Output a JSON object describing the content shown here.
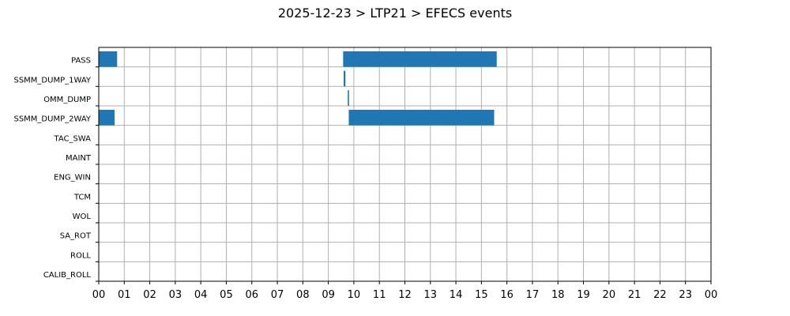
{
  "chart_data": {
    "type": "bar",
    "orientation": "horizontal-timeline",
    "title": "2025-12-23 > LTP21 > EFECS events",
    "xlabel": "",
    "ylabel": "",
    "xlim": [
      0,
      24
    ],
    "x_tick_labels": [
      "00",
      "01",
      "02",
      "03",
      "04",
      "05",
      "06",
      "07",
      "08",
      "09",
      "10",
      "11",
      "12",
      "13",
      "14",
      "15",
      "16",
      "17",
      "18",
      "19",
      "20",
      "21",
      "22",
      "23",
      "00"
    ],
    "categories": [
      "PASS",
      "SSMM_DUMP_1WAY",
      "OMM_DUMP",
      "SSMM_DUMP_2WAY",
      "TAC_SWA",
      "MAINT",
      "ENG_WIN",
      "TCM",
      "WOL",
      "SA_ROT",
      "ROLL",
      "CALIB_ROLL"
    ],
    "grid": true,
    "bar_color": "#1f77b4",
    "events": [
      {
        "category": "PASS",
        "start": 0.0,
        "end": 0.72
      },
      {
        "category": "PASS",
        "start": 9.58,
        "end": 15.6
      },
      {
        "category": "SSMM_DUMP_1WAY",
        "start": 9.6,
        "end": 9.67
      },
      {
        "category": "OMM_DUMP",
        "start": 9.76,
        "end": 9.81
      },
      {
        "category": "SSMM_DUMP_2WAY",
        "start": 0.0,
        "end": 0.62
      },
      {
        "category": "SSMM_DUMP_2WAY",
        "start": 9.8,
        "end": 15.5
      }
    ]
  }
}
